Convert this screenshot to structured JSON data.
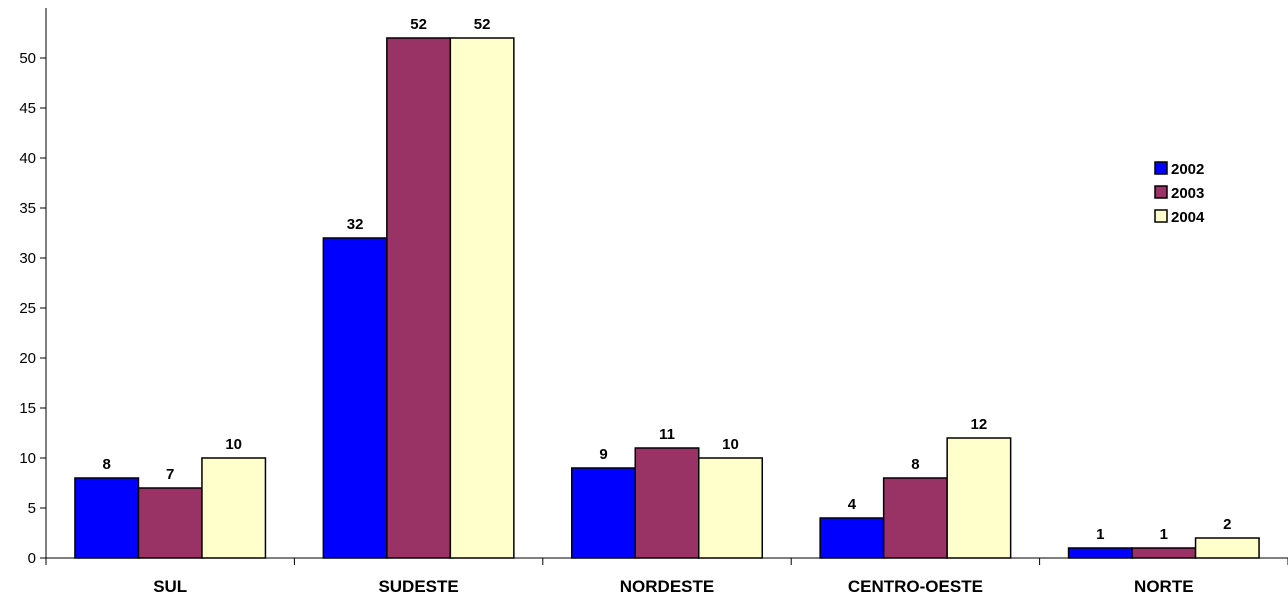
{
  "chart_data": {
    "type": "bar",
    "categories": [
      "SUL",
      "SUDESTE",
      "NORDESTE",
      "CENTRO-OESTE",
      "NORTE"
    ],
    "series": [
      {
        "name": "2002",
        "color": "#0000ff",
        "values": [
          8,
          32,
          9,
          4,
          1
        ]
      },
      {
        "name": "2003",
        "color": "#993366",
        "values": [
          7,
          52,
          11,
          8,
          1
        ]
      },
      {
        "name": "2004",
        "color": "#ffffcc",
        "values": [
          10,
          52,
          10,
          12,
          2
        ]
      }
    ],
    "ylim": [
      0,
      55
    ],
    "yticks": [
      0,
      5,
      10,
      15,
      20,
      25,
      30,
      35,
      40,
      45,
      50
    ],
    "grid": false,
    "legend_position": "right"
  }
}
